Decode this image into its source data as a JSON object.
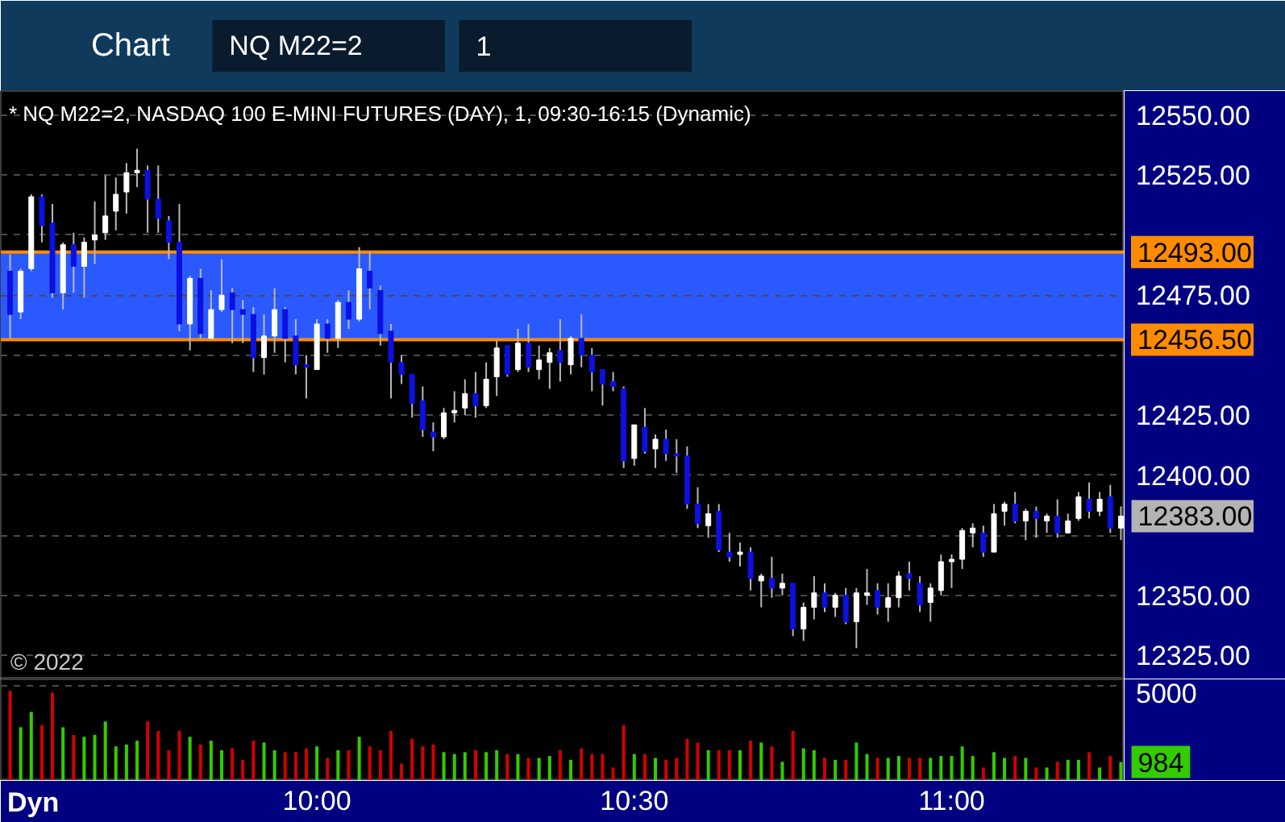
{
  "chart_data": [
    {
      "type": "candlestick",
      "title": "* NQ M22=2, NASDAQ 100 E-MINI FUTURES (DAY), 1, 09:30-16:15 (Dynamic)",
      "x": [
        9.5167,
        9.5333,
        9.55,
        9.5667,
        9.5833,
        9.6,
        9.6167,
        9.6333,
        9.65,
        9.6667,
        9.6833,
        9.7,
        9.7167,
        9.7333,
        9.75,
        9.7667,
        9.7833,
        9.8,
        9.8167,
        9.8333,
        9.85,
        9.8667,
        9.8833,
        9.9,
        9.9167,
        9.9333,
        9.95,
        9.9667,
        9.9833,
        10,
        10.0167,
        10.0333,
        10.05,
        10.0667,
        10.0833,
        10.1,
        10.1167,
        10.1333,
        10.15,
        10.1667,
        10.1833,
        10.2,
        10.2167,
        10.2333,
        10.25,
        10.2667,
        10.2833,
        10.3,
        10.3167,
        10.3333,
        10.35,
        10.3667,
        10.3833,
        10.4,
        10.4167,
        10.4333,
        10.45,
        10.4667,
        10.4833,
        10.5,
        10.5167,
        10.5333,
        10.55,
        10.5667,
        10.5833,
        10.6,
        10.6167,
        10.6333,
        10.65,
        10.6667,
        10.6833,
        10.7,
        10.7167,
        10.7333,
        10.75,
        10.7667,
        10.7833,
        10.8,
        10.8167,
        10.8333,
        10.85,
        10.8667,
        10.8833,
        10.9,
        10.9167,
        10.9333,
        10.95,
        10.9667,
        10.9833,
        11,
        11.0167,
        11.0333,
        11.05,
        11.0667,
        11.0833,
        11.1,
        11.1167,
        11.1333,
        11.15,
        11.1667,
        11.1833,
        11.2,
        11.2167,
        11.2333,
        11.25,
        11.2667
      ],
      "ohlc": [
        [
          12485,
          12492,
          12457,
          12467
        ],
        [
          12468,
          12486,
          12465,
          12485
        ],
        [
          12486,
          12517,
          12485,
          12516
        ],
        [
          12516,
          12517,
          12497,
          12504
        ],
        [
          12505,
          12513,
          12474,
          12476
        ],
        [
          12476,
          12497,
          12469,
          12496
        ],
        [
          12496,
          12501,
          12476,
          12487
        ],
        [
          12487,
          12499,
          12474,
          12497
        ],
        [
          12498,
          12514,
          12488,
          12500
        ],
        [
          12501,
          12525,
          12498,
          12508
        ],
        [
          12510,
          12524,
          12502,
          12517
        ],
        [
          12518,
          12530,
          12509,
          12526
        ],
        [
          12526,
          12536,
          12520,
          12527
        ],
        [
          12527,
          12529,
          12501,
          12515
        ],
        [
          12515,
          12529,
          12501,
          12507
        ],
        [
          12506,
          12508,
          12490,
          12497
        ],
        [
          12497,
          12513,
          12460,
          12463
        ],
        [
          12463,
          12483,
          12452,
          12482
        ],
        [
          12482,
          12486,
          12457,
          12459
        ],
        [
          12457,
          12477,
          12457,
          12469
        ],
        [
          12469,
          12490,
          12468,
          12475
        ],
        [
          12476,
          12478,
          12455,
          12469
        ],
        [
          12469,
          12473,
          12455,
          12467
        ],
        [
          12467,
          12470,
          12443,
          12449
        ],
        [
          12449,
          12467,
          12442,
          12458
        ],
        [
          12458,
          12478,
          12451,
          12469
        ],
        [
          12469,
          12470,
          12447,
          12457
        ],
        [
          12458,
          12465,
          12442,
          12446
        ],
        [
          12446,
          12450,
          12432,
          12445
        ],
        [
          12444,
          12465,
          12444,
          12463
        ],
        [
          12463,
          12465,
          12451,
          12457
        ],
        [
          12457,
          12473,
          12453,
          12472
        ],
        [
          12472,
          12477,
          12461,
          12465
        ],
        [
          12465,
          12495,
          12464,
          12486
        ],
        [
          12485,
          12493,
          12469,
          12478
        ],
        [
          12477,
          12479,
          12454,
          12459
        ],
        [
          12460,
          12463,
          12432,
          12447
        ],
        [
          12447,
          12450,
          12438,
          12442
        ],
        [
          12442,
          12442,
          12424,
          12430
        ],
        [
          12431,
          12437,
          12416,
          12419
        ],
        [
          12418,
          12422,
          12410,
          12416
        ],
        [
          12416,
          12428,
          12415,
          12426
        ],
        [
          12426,
          12435,
          12422,
          12427
        ],
        [
          12428,
          12440,
          12425,
          12434
        ],
        [
          12434,
          12443,
          12424,
          12429
        ],
        [
          12429,
          12447,
          12428,
          12440
        ],
        [
          12441,
          12456,
          12433,
          12453
        ],
        [
          12454,
          12454,
          12441,
          12442
        ],
        [
          12444,
          12461,
          12443,
          12455
        ],
        [
          12455,
          12463,
          12443,
          12445
        ],
        [
          12444,
          12454,
          12440,
          12448
        ],
        [
          12447,
          12453,
          12436,
          12451
        ],
        [
          12452,
          12465,
          12439,
          12447
        ],
        [
          12446,
          12458,
          12442,
          12457
        ],
        [
          12457,
          12467,
          12445,
          12450
        ],
        [
          12450,
          12453,
          12435,
          12443
        ],
        [
          12444,
          12444,
          12429,
          12438
        ],
        [
          12439,
          12443,
          12435,
          12437
        ],
        [
          12436,
          12437,
          12403,
          12406
        ],
        [
          12407,
          12421,
          12404,
          12421
        ],
        [
          12420,
          12428,
          12409,
          12410
        ],
        [
          12411,
          12417,
          12403,
          12415
        ],
        [
          12415,
          12419,
          12406,
          12409
        ],
        [
          12409,
          12415,
          12401,
          12408
        ],
        [
          12408,
          12412,
          12386,
          12388
        ],
        [
          12388,
          12395,
          12378,
          12380
        ],
        [
          12379,
          12388,
          12374,
          12384
        ],
        [
          12385,
          12388,
          12368,
          12369
        ],
        [
          12368,
          12376,
          12364,
          12366
        ],
        [
          12367,
          12372,
          12362,
          12368
        ],
        [
          12368,
          12370,
          12352,
          12357
        ],
        [
          12356,
          12359,
          12345,
          12358
        ],
        [
          12357,
          12366,
          12349,
          12353
        ],
        [
          12353,
          12359,
          12350,
          12355
        ],
        [
          12355,
          12355,
          12333,
          12336
        ],
        [
          12336,
          12347,
          12331,
          12345
        ],
        [
          12345,
          12358,
          12340,
          12351
        ],
        [
          12351,
          12355,
          12343,
          12345
        ],
        [
          12345,
          12351,
          12341,
          12350
        ],
        [
          12350,
          12353,
          12338,
          12339
        ],
        [
          12339,
          12353,
          12328,
          12351
        ],
        [
          12350,
          12361,
          12346,
          12351
        ],
        [
          12352,
          12355,
          12342,
          12345
        ],
        [
          12345,
          12355,
          12339,
          12349
        ],
        [
          12349,
          12360,
          12345,
          12358
        ],
        [
          12359,
          12364,
          12352,
          12357
        ],
        [
          12355,
          12358,
          12343,
          12346
        ],
        [
          12347,
          12355,
          12339,
          12353
        ],
        [
          12352,
          12367,
          12350,
          12364
        ],
        [
          12364,
          12367,
          12353,
          12365
        ],
        [
          12365,
          12378,
          12361,
          12377
        ],
        [
          12376,
          12380,
          12370,
          12378
        ],
        [
          12376,
          12379,
          12366,
          12368
        ],
        [
          12368,
          12388,
          12368,
          12384
        ],
        [
          12385,
          12389,
          12379,
          12388
        ],
        [
          12388,
          12393,
          12380,
          12381
        ],
        [
          12381,
          12386,
          12373,
          12385
        ],
        [
          12385,
          12387,
          12374,
          12382
        ],
        [
          12381,
          12384,
          12376,
          12383
        ],
        [
          12383,
          12390,
          12374,
          12376
        ],
        [
          12376,
          12384,
          12376,
          12381
        ],
        [
          12382,
          12393,
          12381,
          12391
        ],
        [
          12390,
          12397,
          12382,
          12385
        ],
        [
          12385,
          12393,
          12383,
          12390
        ],
        [
          12391,
          12396,
          12376,
          12378
        ],
        [
          12378,
          12387,
          12373,
          12383
        ]
      ],
      "colors": [
        "#0c10e0",
        "#ffffff",
        "#ffffff",
        "#0c10e0",
        "#0c10e0",
        "#ffffff",
        "#0c10e0",
        "#ffffff",
        "#ffffff",
        "#ffffff",
        "#ffffff",
        "#ffffff",
        "#ffffff",
        "#0c10e0",
        "#0c10e0",
        "#0c10e0",
        "#0c10e0",
        "#ffffff",
        "#0c10e0",
        "#ffffff",
        "#ffffff",
        "#0c10e0",
        "#0c10e0",
        "#0c10e0",
        "#ffffff",
        "#ffffff",
        "#0c10e0",
        "#0c10e0",
        "#0c10e0",
        "#ffffff",
        "#0c10e0",
        "#ffffff",
        "#0c10e0",
        "#ffffff",
        "#0c10e0",
        "#0c10e0",
        "#0c10e0",
        "#0c10e0",
        "#0c10e0",
        "#0c10e0",
        "#0c10e0",
        "#ffffff",
        "#ffffff",
        "#ffffff",
        "#0c10e0",
        "#ffffff",
        "#ffffff",
        "#0c10e0",
        "#ffffff",
        "#0c10e0",
        "#ffffff",
        "#ffffff",
        "#0c10e0",
        "#ffffff",
        "#0c10e0",
        "#0c10e0",
        "#0c10e0",
        "#0c10e0",
        "#0c10e0",
        "#ffffff",
        "#0c10e0",
        "#ffffff",
        "#0c10e0",
        "#0c10e0",
        "#0c10e0",
        "#0c10e0",
        "#ffffff",
        "#0c10e0",
        "#0c10e0",
        "#ffffff",
        "#0c10e0",
        "#ffffff",
        "#0c10e0",
        "#ffffff",
        "#0c10e0",
        "#ffffff",
        "#ffffff",
        "#0c10e0",
        "#ffffff",
        "#0c10e0",
        "#ffffff",
        "#ffffff",
        "#0c10e0",
        "#ffffff",
        "#ffffff",
        "#0c10e0",
        "#0c10e0",
        "#ffffff",
        "#ffffff",
        "#ffffff",
        "#ffffff",
        "#ffffff",
        "#0c10e0",
        "#ffffff",
        "#ffffff",
        "#0c10e0",
        "#ffffff",
        "#0c10e0",
        "#ffffff",
        "#0c10e0",
        "#ffffff",
        "#ffffff",
        "#0c10e0",
        "#ffffff",
        "#0c10e0",
        "#ffffff"
      ],
      "xlim": [
        9.502,
        11.2725
      ],
      "ylim": [
        12315,
        12560
      ],
      "yticks": [
        {
          "value": 12325,
          "label": "12325.00"
        },
        {
          "value": 12350,
          "label": "12350.00"
        },
        {
          "value": 12375,
          "label": null
        },
        {
          "value": 12400,
          "label": "12400.00"
        },
        {
          "value": 12425,
          "label": "12425.00"
        },
        {
          "value": 12450,
          "label": null
        },
        {
          "value": 12475,
          "label": "12475.00"
        },
        {
          "value": 12500,
          "label": null
        },
        {
          "value": 12525,
          "label": "12525.00"
        },
        {
          "value": 12550,
          "label": "12550.00"
        }
      ],
      "tick_labels": "y",
      "grid": "y",
      "bands": [
        {
          "axis": "y",
          "from": 12456.5,
          "to": 12493,
          "color": "#2a5aff"
        }
      ],
      "ref_lines": [
        {
          "axis": "y",
          "value": 12493,
          "label": "12493.00",
          "color": "#ff8c00"
        },
        {
          "axis": "y",
          "value": 12456.5,
          "label": "12456.50",
          "color": "#ff8c00"
        }
      ],
      "annotations": [
        "Chart",
        "NQ M22=2",
        "1",
        "© 2022",
        {
          "text": "12383.00",
          "x": 11.2667,
          "y": 12383
        }
      ]
    },
    {
      "type": "bar",
      "x": [
        9.5167,
        9.5333,
        9.55,
        9.5667,
        9.5833,
        9.6,
        9.6167,
        9.6333,
        9.65,
        9.6667,
        9.6833,
        9.7,
        9.7167,
        9.7333,
        9.75,
        9.7667,
        9.7833,
        9.8,
        9.8167,
        9.8333,
        9.85,
        9.8667,
        9.8833,
        9.9,
        9.9167,
        9.9333,
        9.95,
        9.9667,
        9.9833,
        10,
        10.0167,
        10.0333,
        10.05,
        10.0667,
        10.0833,
        10.1,
        10.1167,
        10.1333,
        10.15,
        10.1667,
        10.1833,
        10.2,
        10.2167,
        10.2333,
        10.25,
        10.2667,
        10.2833,
        10.3,
        10.3167,
        10.3333,
        10.35,
        10.3667,
        10.3833,
        10.4,
        10.4167,
        10.4333,
        10.45,
        10.4667,
        10.4833,
        10.5,
        10.5167,
        10.5333,
        10.55,
        10.5667,
        10.5833,
        10.6,
        10.6167,
        10.6333,
        10.65,
        10.6667,
        10.6833,
        10.7,
        10.7167,
        10.7333,
        10.75,
        10.7667,
        10.7833,
        10.8,
        10.8167,
        10.8333,
        10.85,
        10.8667,
        10.8833,
        10.9,
        10.9167,
        10.9333,
        10.95,
        10.9667,
        10.9833,
        11,
        11.0167,
        11.0333,
        11.05,
        11.0667,
        11.0833,
        11.1,
        11.1167,
        11.1333,
        11.15,
        11.1667,
        11.1833,
        11.2,
        11.2167,
        11.2333,
        11.25,
        11.2667
      ],
      "values": [
        4700,
        2800,
        3600,
        2900,
        4600,
        2800,
        2400,
        2300,
        2400,
        3100,
        1800,
        1900,
        2100,
        3100,
        2600,
        1600,
        2600,
        2300,
        1900,
        2100,
        1600,
        1700,
        1100,
        2100,
        2000,
        1600,
        1500,
        1500,
        1700,
        1800,
        1200,
        1600,
        1600,
        2300,
        1800,
        1600,
        2600,
        900,
        2200,
        1800,
        1900,
        1500,
        1400,
        1500,
        1600,
        1500,
        1600,
        1400,
        1400,
        1200,
        1200,
        1300,
        1600,
        1100,
        1700,
        1400,
        1400,
        700,
        2900,
        1400,
        1400,
        1200,
        1100,
        1200,
        2200,
        2000,
        1600,
        1600,
        1600,
        1600,
        2100,
        2000,
        1800,
        1000,
        2600,
        1700,
        1600,
        1200,
        1100,
        1100,
        2000,
        1400,
        1200,
        1200,
        1300,
        1200,
        1200,
        1200,
        1300,
        1300,
        1800,
        1300,
        700,
        1500,
        1200,
        1300,
        1200,
        700,
        700,
        1000,
        1100,
        1100,
        1500,
        700,
        1300,
        984
      ],
      "colors": [
        "#d40000",
        "#33cc00",
        "#33cc00",
        "#d40000",
        "#d40000",
        "#33cc00",
        "#d40000",
        "#33cc00",
        "#33cc00",
        "#33cc00",
        "#33cc00",
        "#33cc00",
        "#33cc00",
        "#d40000",
        "#d40000",
        "#d40000",
        "#d40000",
        "#33cc00",
        "#d40000",
        "#33cc00",
        "#33cc00",
        "#d40000",
        "#d40000",
        "#d40000",
        "#33cc00",
        "#33cc00",
        "#d40000",
        "#d40000",
        "#d40000",
        "#33cc00",
        "#d40000",
        "#33cc00",
        "#d40000",
        "#33cc00",
        "#d40000",
        "#d40000",
        "#d40000",
        "#d40000",
        "#d40000",
        "#d40000",
        "#d40000",
        "#33cc00",
        "#33cc00",
        "#33cc00",
        "#d40000",
        "#33cc00",
        "#33cc00",
        "#d40000",
        "#33cc00",
        "#d40000",
        "#33cc00",
        "#33cc00",
        "#d40000",
        "#33cc00",
        "#d40000",
        "#d40000",
        "#d40000",
        "#d40000",
        "#d40000",
        "#33cc00",
        "#d40000",
        "#33cc00",
        "#d40000",
        "#d40000",
        "#d40000",
        "#d40000",
        "#33cc00",
        "#d40000",
        "#d40000",
        "#33cc00",
        "#d40000",
        "#33cc00",
        "#d40000",
        "#33cc00",
        "#d40000",
        "#33cc00",
        "#33cc00",
        "#d40000",
        "#33cc00",
        "#d40000",
        "#33cc00",
        "#33cc00",
        "#d40000",
        "#33cc00",
        "#33cc00",
        "#d40000",
        "#d40000",
        "#33cc00",
        "#33cc00",
        "#33cc00",
        "#33cc00",
        "#33cc00",
        "#d40000",
        "#33cc00",
        "#33cc00",
        "#d40000",
        "#33cc00",
        "#d40000",
        "#33cc00",
        "#d40000",
        "#33cc00",
        "#33cc00",
        "#d40000",
        "#33cc00",
        "#d40000",
        "#33cc00"
      ],
      "xlim": [
        9.502,
        11.2725
      ],
      "xticks": [
        {
          "value": 10,
          "label": "10:00"
        },
        {
          "value": 10.5,
          "label": "10:30"
        },
        {
          "value": 11,
          "label": "11:00"
        }
      ],
      "ylim": [
        0,
        5300
      ],
      "yticks": [
        5000
      ],
      "grid": "y",
      "annotations": [
        "Dyn",
        {
          "text": "984",
          "x": 11.2667,
          "y": 984
        }
      ]
    }
  ]
}
